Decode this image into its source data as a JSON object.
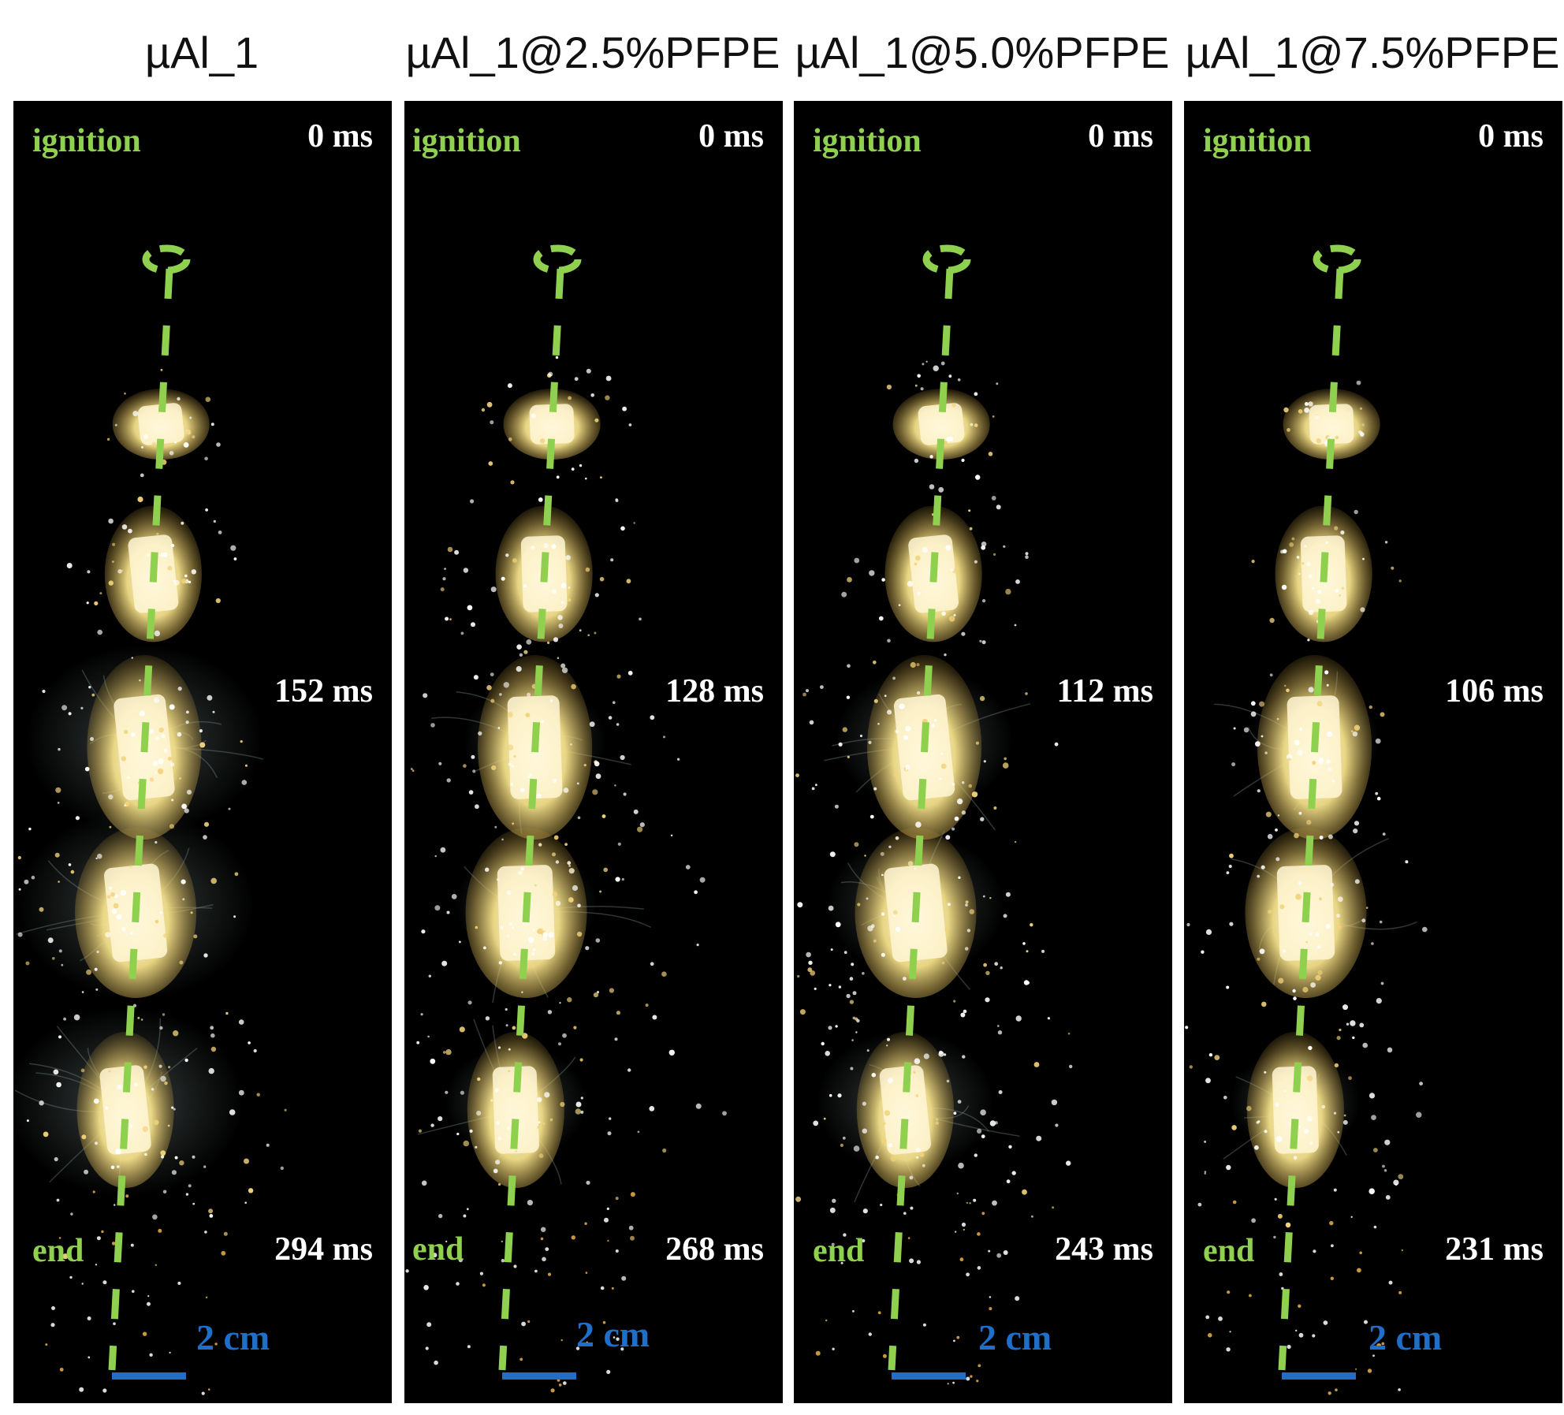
{
  "columns": [
    {
      "title": "µAl_1",
      "ignition_label": "ignition",
      "start_time": "0 ms",
      "mid_time": "152 ms",
      "end_label": "end",
      "end_time": "294 ms",
      "scale_label": "2 cm"
    },
    {
      "title": "µAl_1@2.5%PFPE",
      "ignition_label": "ignition",
      "start_time": "0 ms",
      "mid_time": "128 ms",
      "end_label": "end",
      "end_time": "268 ms",
      "scale_label": "2 cm"
    },
    {
      "title": "µAl_1@5.0%PFPE",
      "ignition_label": "ignition",
      "start_time": "0 ms",
      "mid_time": "112 ms",
      "end_label": "end",
      "end_time": "243 ms",
      "scale_label": "2 cm"
    },
    {
      "title": "µAl_1@7.5%PFPE",
      "ignition_label": "ignition",
      "start_time": "0 ms",
      "mid_time": "106 ms",
      "end_label": "end",
      "end_time": "231 ms",
      "scale_label": "2 cm"
    }
  ],
  "colors": {
    "trajectory": "#8fd14f",
    "labels_green": "#8fd14f",
    "scale_bar": "#1f6fc8",
    "flame": "#f3e08a",
    "background": "#000000"
  }
}
